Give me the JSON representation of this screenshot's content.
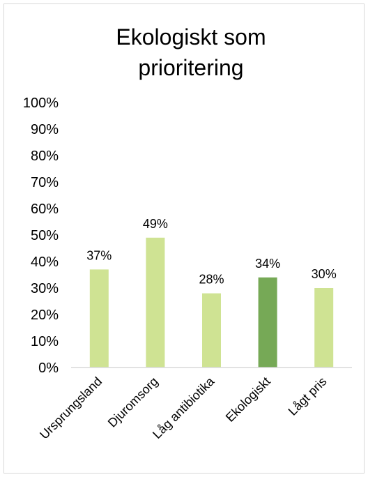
{
  "chart_data": {
    "type": "bar",
    "title_lines": [
      "Ekologiskt som",
      "prioritering"
    ],
    "categories": [
      "Ursprungsland",
      "Djuromsorg",
      "Låg antibiotika",
      "Ekologiskt",
      "Lågt pris"
    ],
    "values": [
      37,
      49,
      28,
      34,
      30
    ],
    "data_labels": [
      "37%",
      "49%",
      "28%",
      "34%",
      "30%"
    ],
    "ylim": [
      0,
      100
    ],
    "y_ticks": [
      "0%",
      "10%",
      "20%",
      "30%",
      "40%",
      "50%",
      "60%",
      "70%",
      "80%",
      "90%",
      "100%"
    ],
    "grid": false,
    "legend": "none",
    "highlight_index": 3,
    "colors": {
      "bar": "#cfe393",
      "highlight": "#76a956",
      "axis": "#d9d9d9"
    }
  }
}
